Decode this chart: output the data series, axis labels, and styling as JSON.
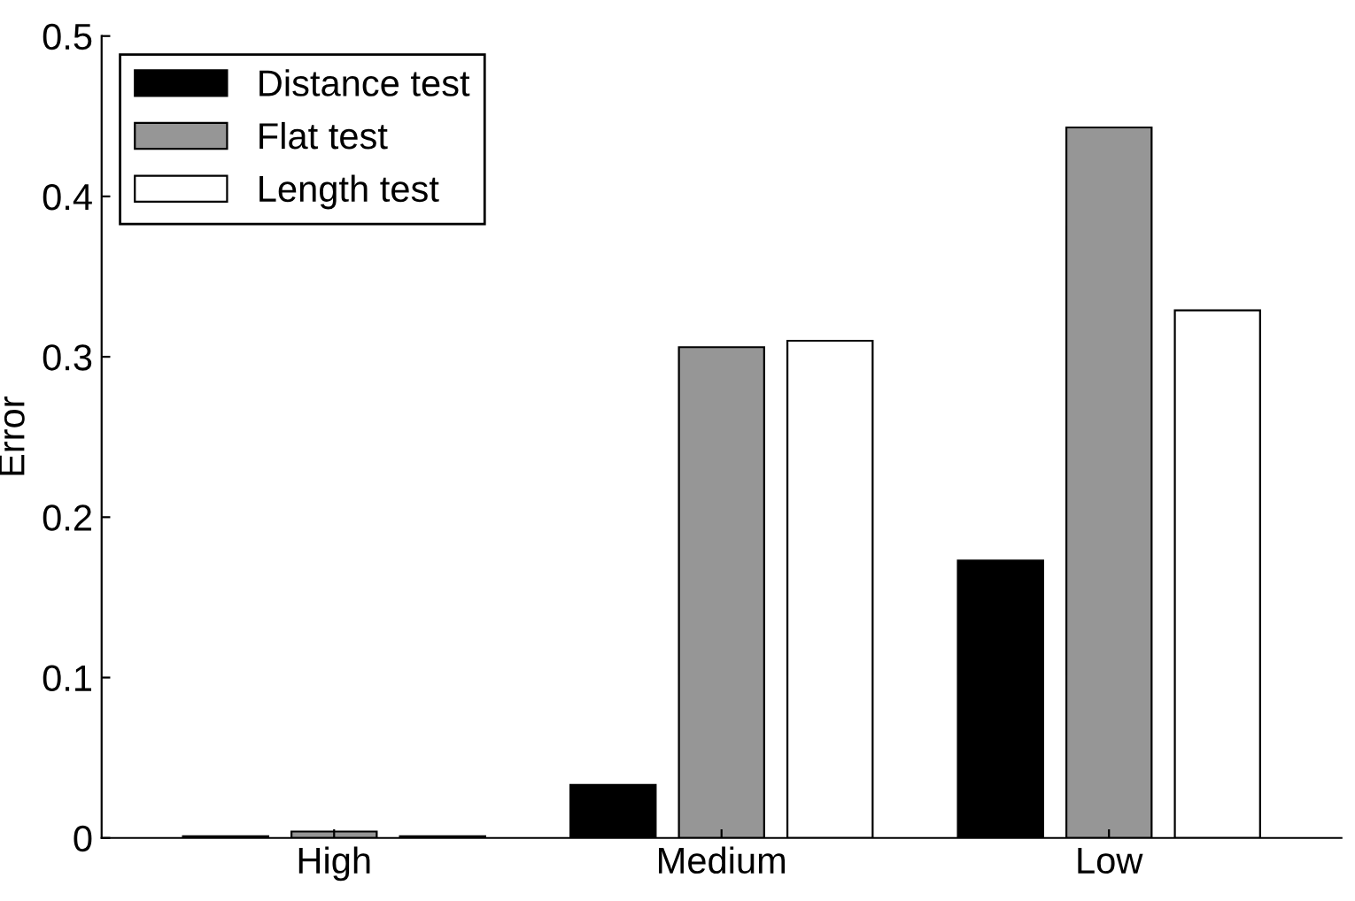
{
  "chart_data": {
    "type": "bar",
    "ylabel": "Error",
    "categories": [
      "High",
      "Medium",
      "Low"
    ],
    "series": [
      {
        "name": "Distance test",
        "color": "#000000",
        "values": [
          0.001,
          0.033,
          0.173
        ]
      },
      {
        "name": "Flat test",
        "color": "#969696",
        "values": [
          0.004,
          0.306,
          0.443
        ]
      },
      {
        "name": "Length test",
        "color": "#ffffff",
        "values": [
          0.001,
          0.31,
          0.329
        ]
      }
    ],
    "ylim": [
      0,
      0.5
    ],
    "yticks": [
      0,
      0.1,
      0.2,
      0.3,
      0.4,
      0.5
    ],
    "grid": false,
    "legend": "top left"
  }
}
